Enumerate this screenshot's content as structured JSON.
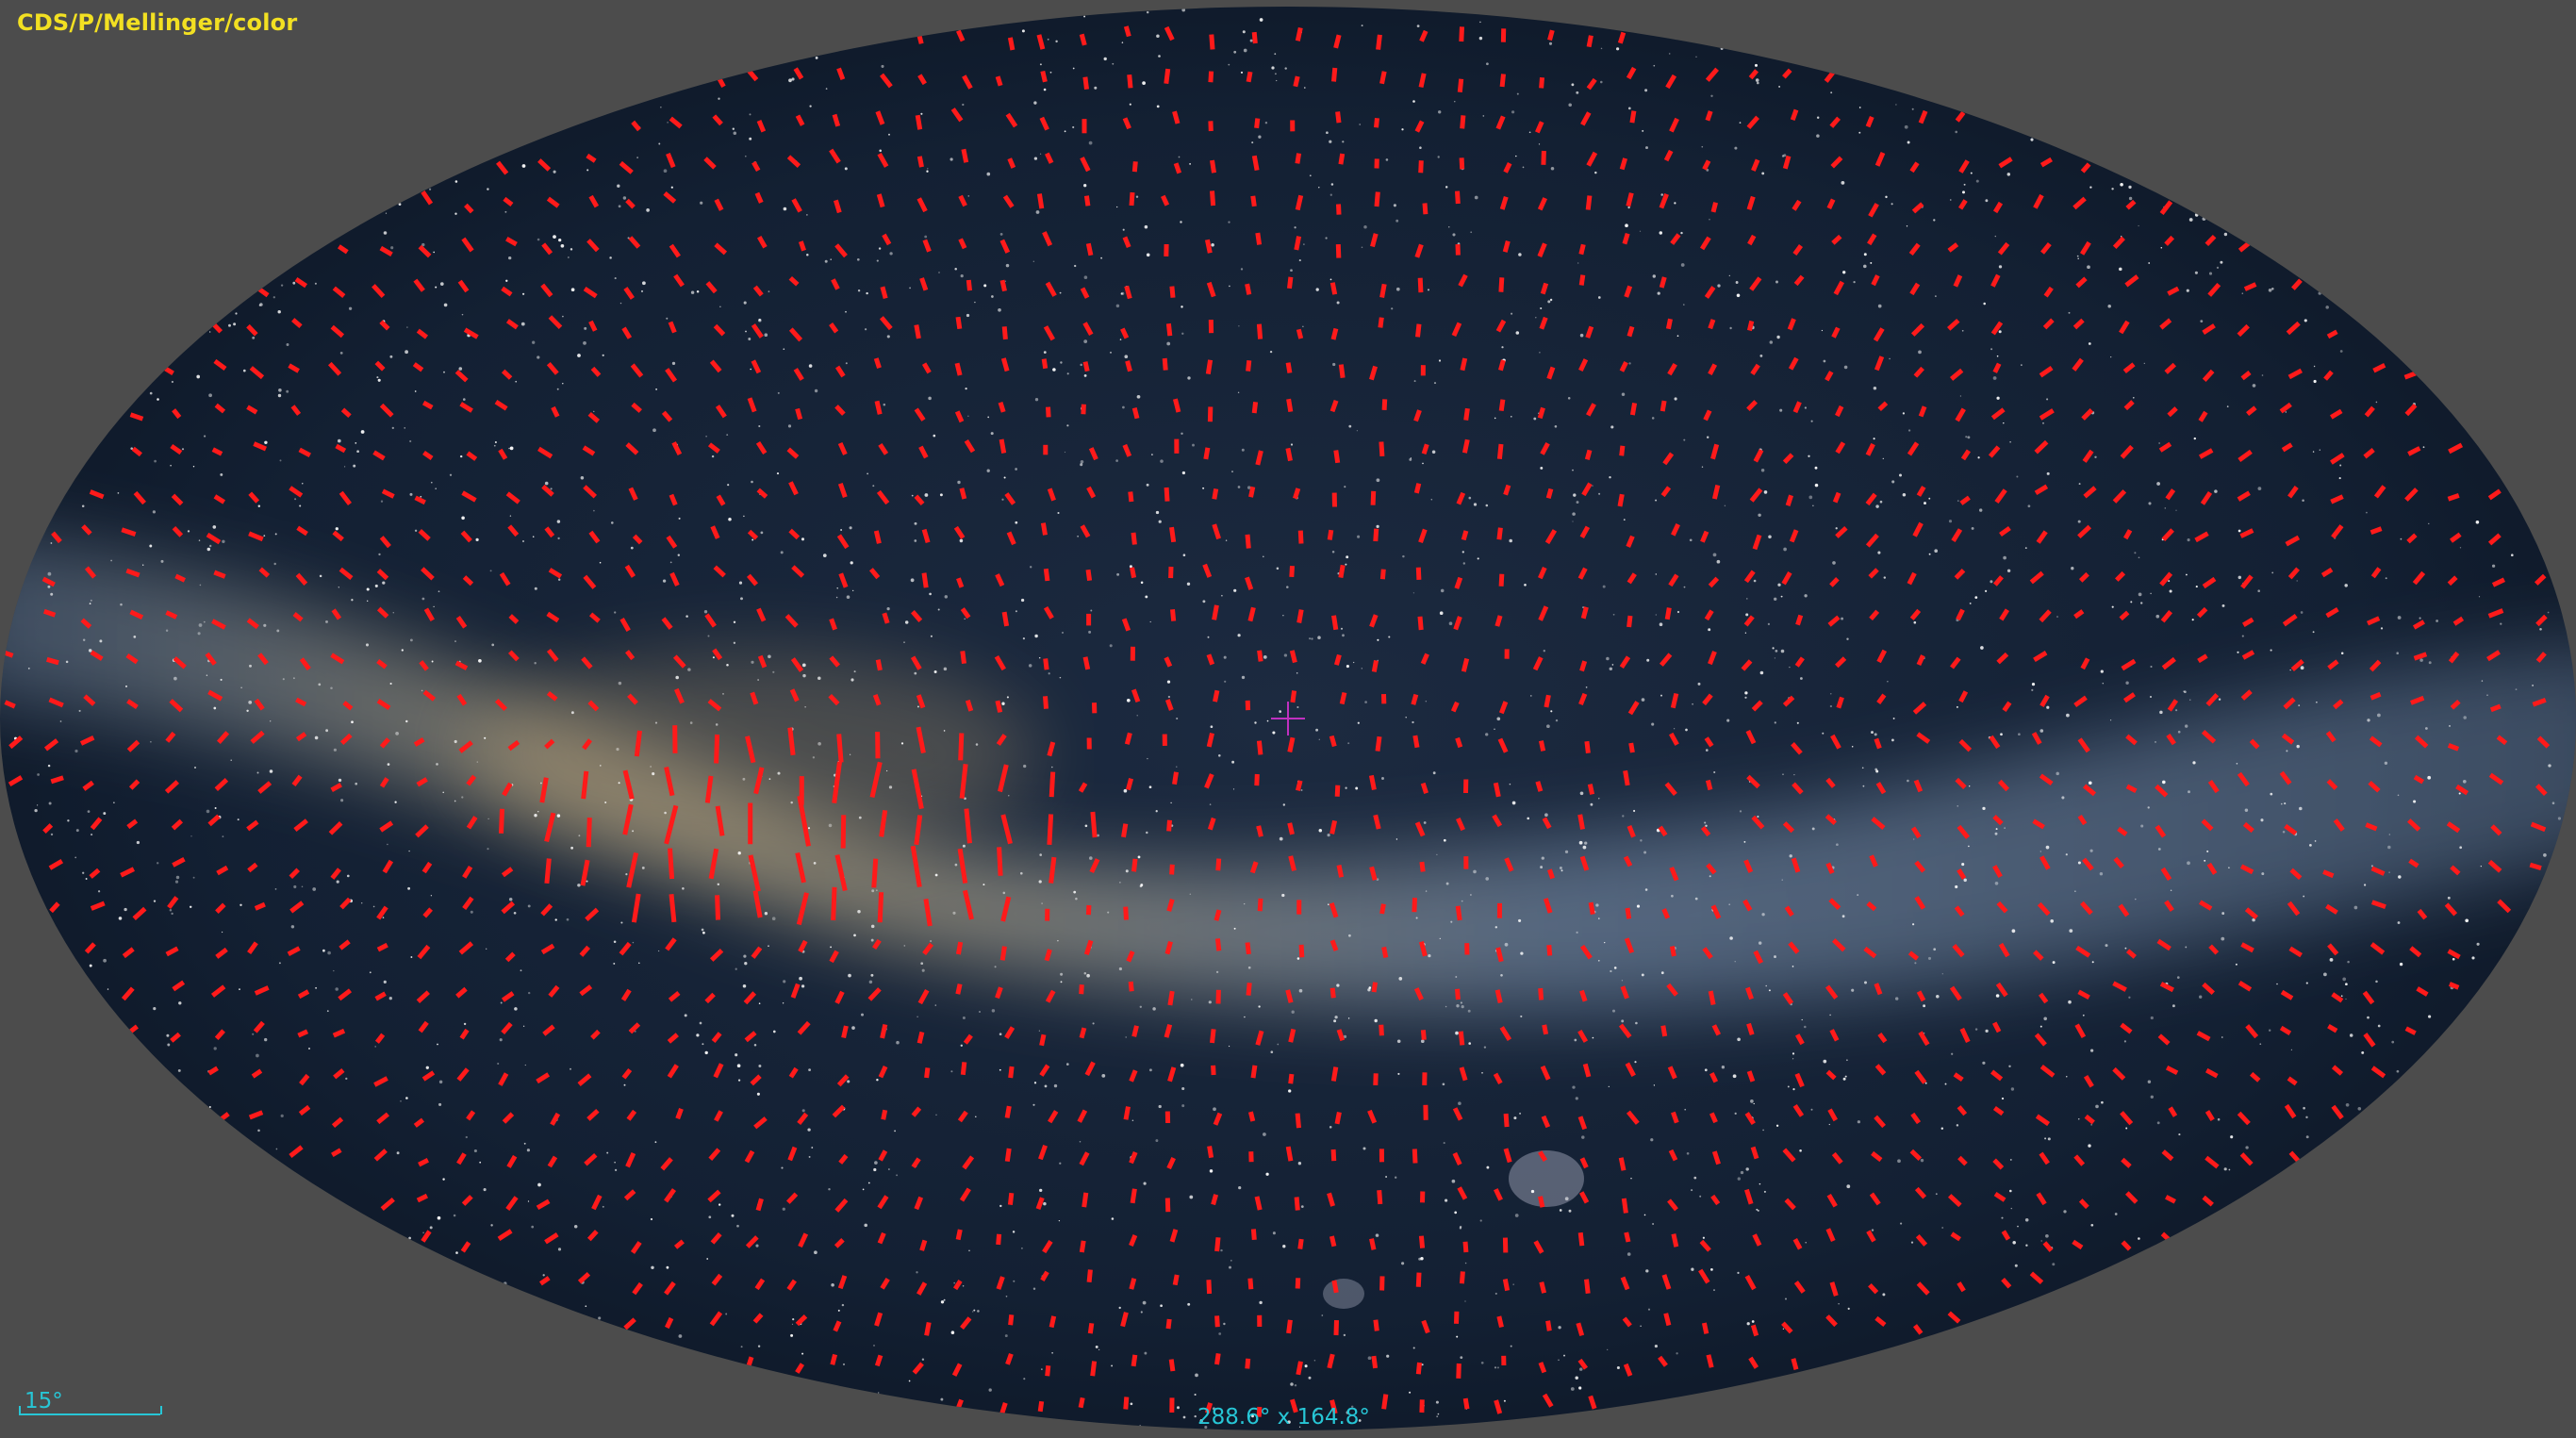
{
  "view": {
    "survey_label": "CDS/P/Mellinger/color",
    "scale_label": "15°",
    "fov_label": "288.6° x 164.8°"
  },
  "colors": {
    "background": "#4c4c4c",
    "survey_label": "#f2e022",
    "overlay_text": "#27c6d6",
    "polarization_segments": "#ff1a1a",
    "reticle": "#c030c0",
    "sky": "#0e1a2b"
  },
  "overlay": {
    "type": "polarization-vector-field",
    "projection": "aitoff"
  }
}
